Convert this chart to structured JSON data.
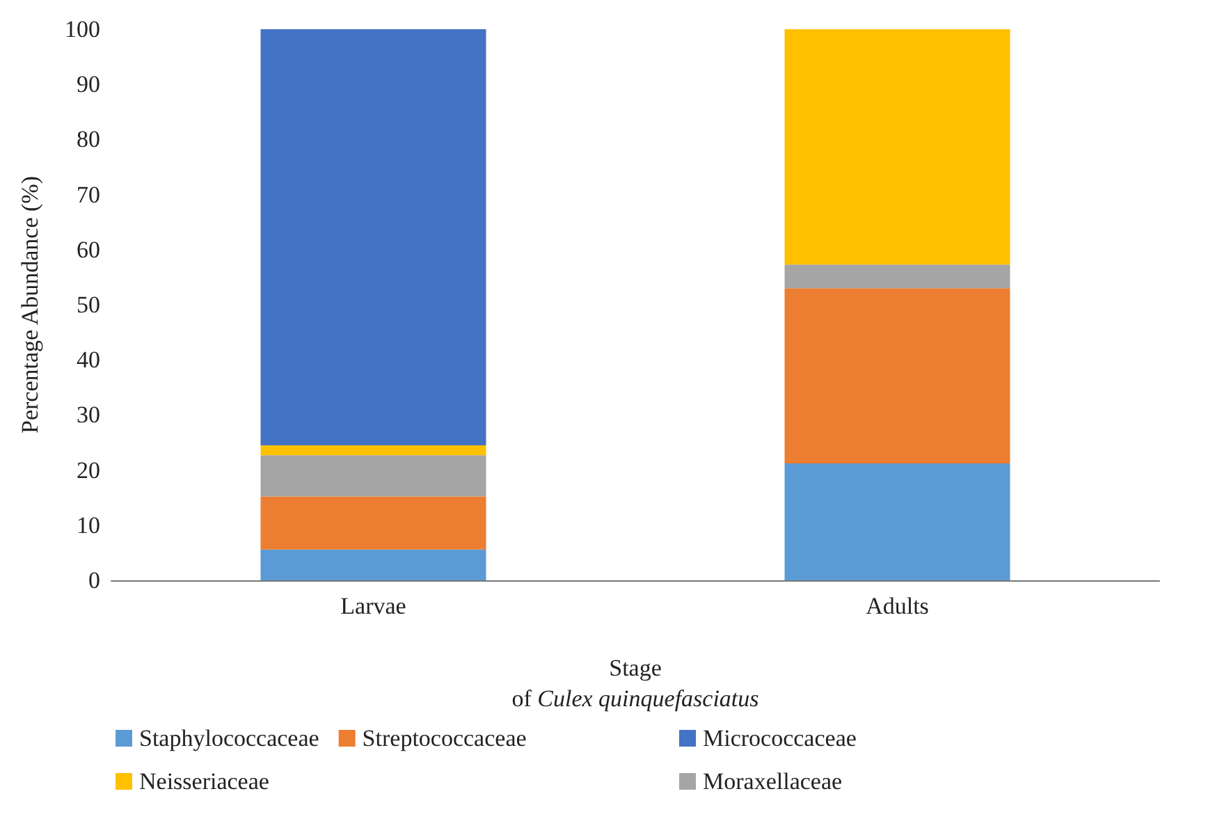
{
  "chart_data": {
    "type": "bar",
    "stacked": true,
    "xlabel": "Stage\nof Culex quinquefasciatus",
    "ylabel": "Percentage Abundance (%)",
    "categories": [
      "Larvae",
      "Adults"
    ],
    "series": [
      {
        "name": "Staphylococcaceae",
        "color": "#5b9bd5",
        "values": [
          5.6,
          21.2
        ]
      },
      {
        "name": "Streptococcaceae",
        "color": "#ed7d31",
        "values": [
          9.6,
          31.8
        ]
      },
      {
        "name": "Moraxellaceae",
        "color": "#a5a5a5",
        "values": [
          7.5,
          4.3
        ]
      },
      {
        "name": "Neisseriaceae",
        "color": "#ffc000",
        "values": [
          1.8,
          42.7
        ]
      },
      {
        "name": "Micrococcaceae",
        "color": "#4472c4",
        "values": [
          75.5,
          0
        ]
      }
    ],
    "ylim": [
      0,
      100
    ],
    "yticks": [
      0,
      10,
      20,
      30,
      40,
      50,
      60,
      70,
      80,
      90,
      100
    ],
    "grid": false,
    "legend": "bottom"
  }
}
